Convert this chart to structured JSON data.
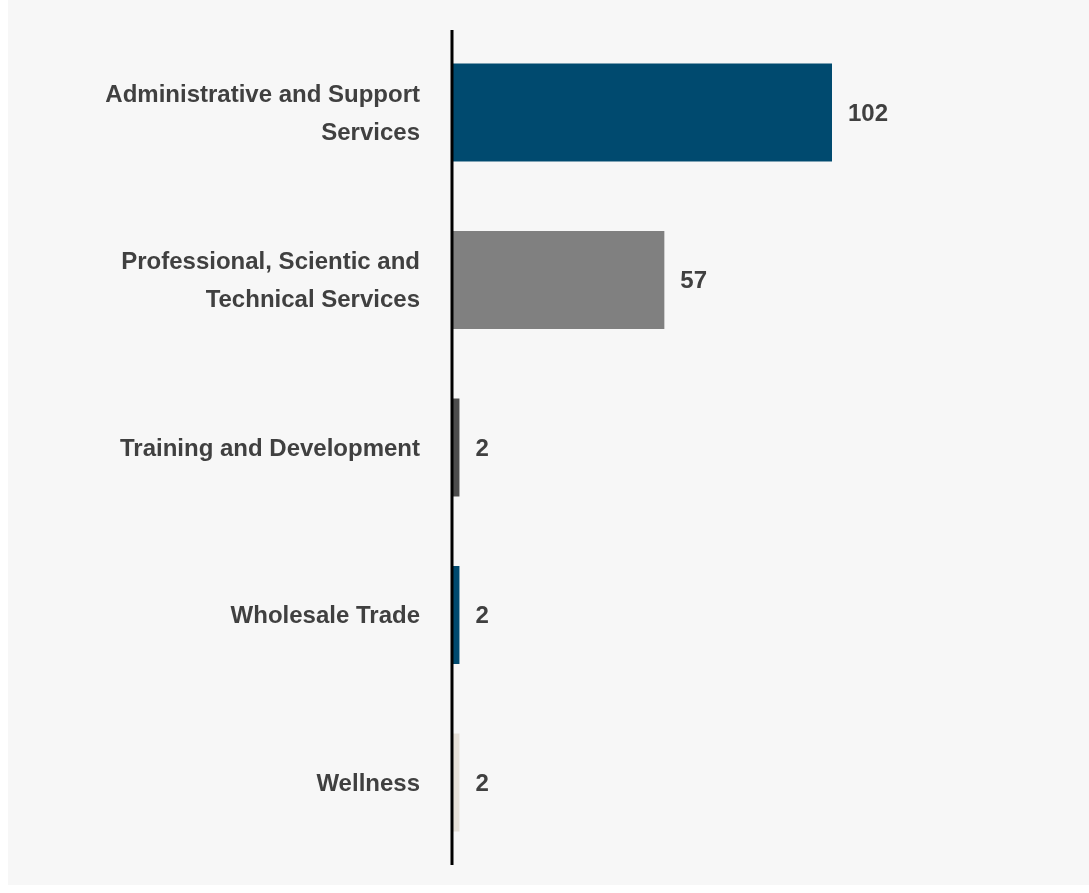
{
  "chart_data": {
    "type": "bar",
    "orientation": "horizontal",
    "categories": [
      "Administrative and Support Services",
      "Professional, Scientic and Technical Services",
      "Training and Development",
      "Wholesale Trade",
      "Wellness"
    ],
    "values": [
      102,
      57,
      2,
      2,
      2
    ],
    "colors": [
      "#004a6f",
      "#808080",
      "#4d4d4d",
      "#004a6f",
      "#e6e0d8"
    ],
    "data_labels": true
  }
}
